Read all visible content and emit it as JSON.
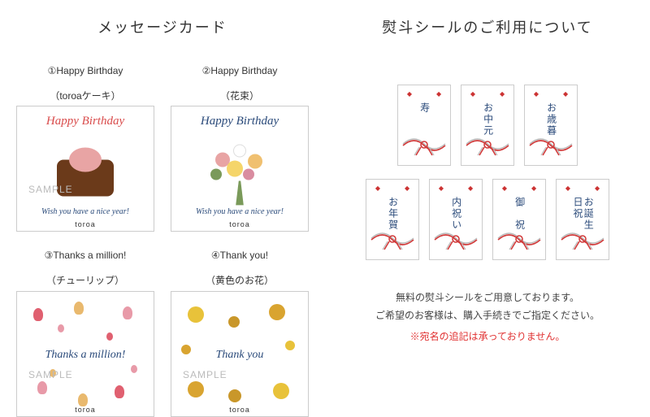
{
  "left": {
    "title": "メッセージカード",
    "cards": [
      {
        "num": "①",
        "label_line1": "①Happy Birthday",
        "label_line2": "（toroaケーキ）",
        "head_text": "Happy Birthday",
        "head_color": "#d94c4c",
        "foot_text": "Wish you have a nice year!",
        "foot_color": "#2a4a7a",
        "brand": "toroa",
        "sample": "SAMPLE",
        "kind": "cake"
      },
      {
        "num": "②",
        "label_line1": "②Happy Birthday",
        "label_line2": "（花束）",
        "head_text": "Happy Birthday",
        "head_color": "#2a4a7a",
        "foot_text": "Wish you have a nice year!",
        "foot_color": "#2a4a7a",
        "brand": "toroa",
        "sample": "",
        "kind": "bouquet"
      },
      {
        "num": "③",
        "label_line1": "③Thanks a million!",
        "label_line2": "（チューリップ）",
        "mid_text": "Thanks a million!",
        "mid_color": "#2a4a7a",
        "brand": "toroa",
        "sample": "SAMPLE",
        "kind": "tulip"
      },
      {
        "num": "④",
        "label_line1": "④Thank you!",
        "label_line2": "（黄色のお花）",
        "mid_text": "Thank you",
        "mid_color": "#2a4a7a",
        "brand": "toroa",
        "sample": "SAMPLE",
        "kind": "yflower"
      }
    ]
  },
  "right": {
    "title": "熨斗シールのご利用について",
    "row1": [
      "寿",
      "お中元",
      "お歳暮"
    ],
    "row2": [
      "お年賀",
      "内祝い",
      "御　祝",
      "お誕生日祝"
    ],
    "note_line1": "無料の熨斗シールをご用意しております。",
    "note_line2": "ご希望のお客様は、購入手続きでご指定ください。",
    "note_warn": "※宛名の追記は承っておりません。"
  },
  "colors": {
    "title": "#333333",
    "cake_body": "#6b3a1a",
    "cake_top": "#e8a4a4",
    "bouquet_petals": [
      "#e8a4a4",
      "#f0c070",
      "#ffffff",
      "#f5d56a",
      "#d98ca0"
    ],
    "bouquet_green": "#7a9a5a",
    "tulip_colors": [
      "#e06070",
      "#e89aa8",
      "#e9b96e"
    ],
    "yflower_colors": [
      "#e8c23a",
      "#d9a430",
      "#c9972a"
    ],
    "knot_red": "#d13a3a",
    "knot_silver": "#b9b9b9",
    "noshi_text": "#2a4a7a",
    "warn": "#e03030"
  }
}
